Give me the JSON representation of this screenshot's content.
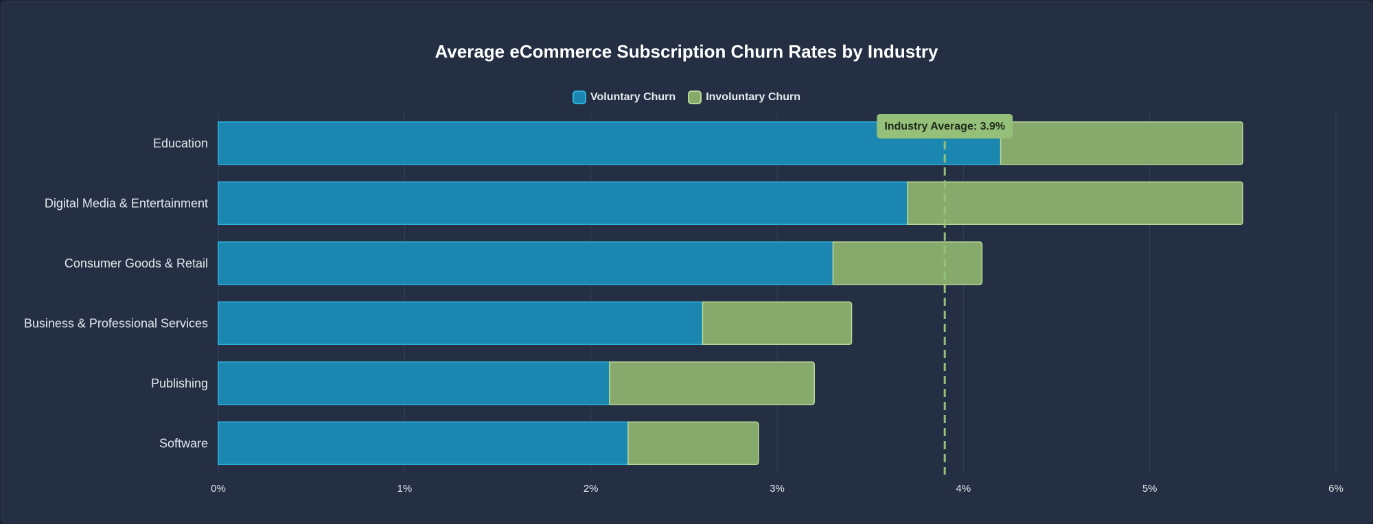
{
  "colors": {
    "voluntary": "#1b87b0",
    "voluntary_border": "#2fb3dc",
    "involuntary": "#87a96b",
    "involuntary_border": "#b8d99a",
    "annotation": "#94c07a"
  },
  "chart_data": {
    "type": "bar",
    "orientation": "horizontal",
    "stacked": true,
    "title": "Average eCommerce Subscription Churn Rates by Industry",
    "categories": [
      "Education",
      "Digital Media & Entertainment",
      "Consumer Goods & Retail",
      "Business & Professional Services",
      "Publishing",
      "Software"
    ],
    "series": [
      {
        "name": "Voluntary Churn",
        "values": [
          4.2,
          3.7,
          3.3,
          2.6,
          2.1,
          2.2
        ]
      },
      {
        "name": "Involuntary Churn",
        "values": [
          1.3,
          1.8,
          0.8,
          0.8,
          1.1,
          0.7
        ]
      }
    ],
    "xlim": [
      0,
      6
    ],
    "xticks": [
      0,
      1,
      2,
      3,
      4,
      5,
      6
    ],
    "tick_suffix": "%",
    "tick_labels": [
      "0%",
      "1%",
      "2%",
      "3%",
      "4%",
      "5%",
      "6%"
    ],
    "legend_position": "top-center",
    "grid": true,
    "annotation": {
      "value": 3.9,
      "label": "Industry Average: 3.9%"
    }
  }
}
